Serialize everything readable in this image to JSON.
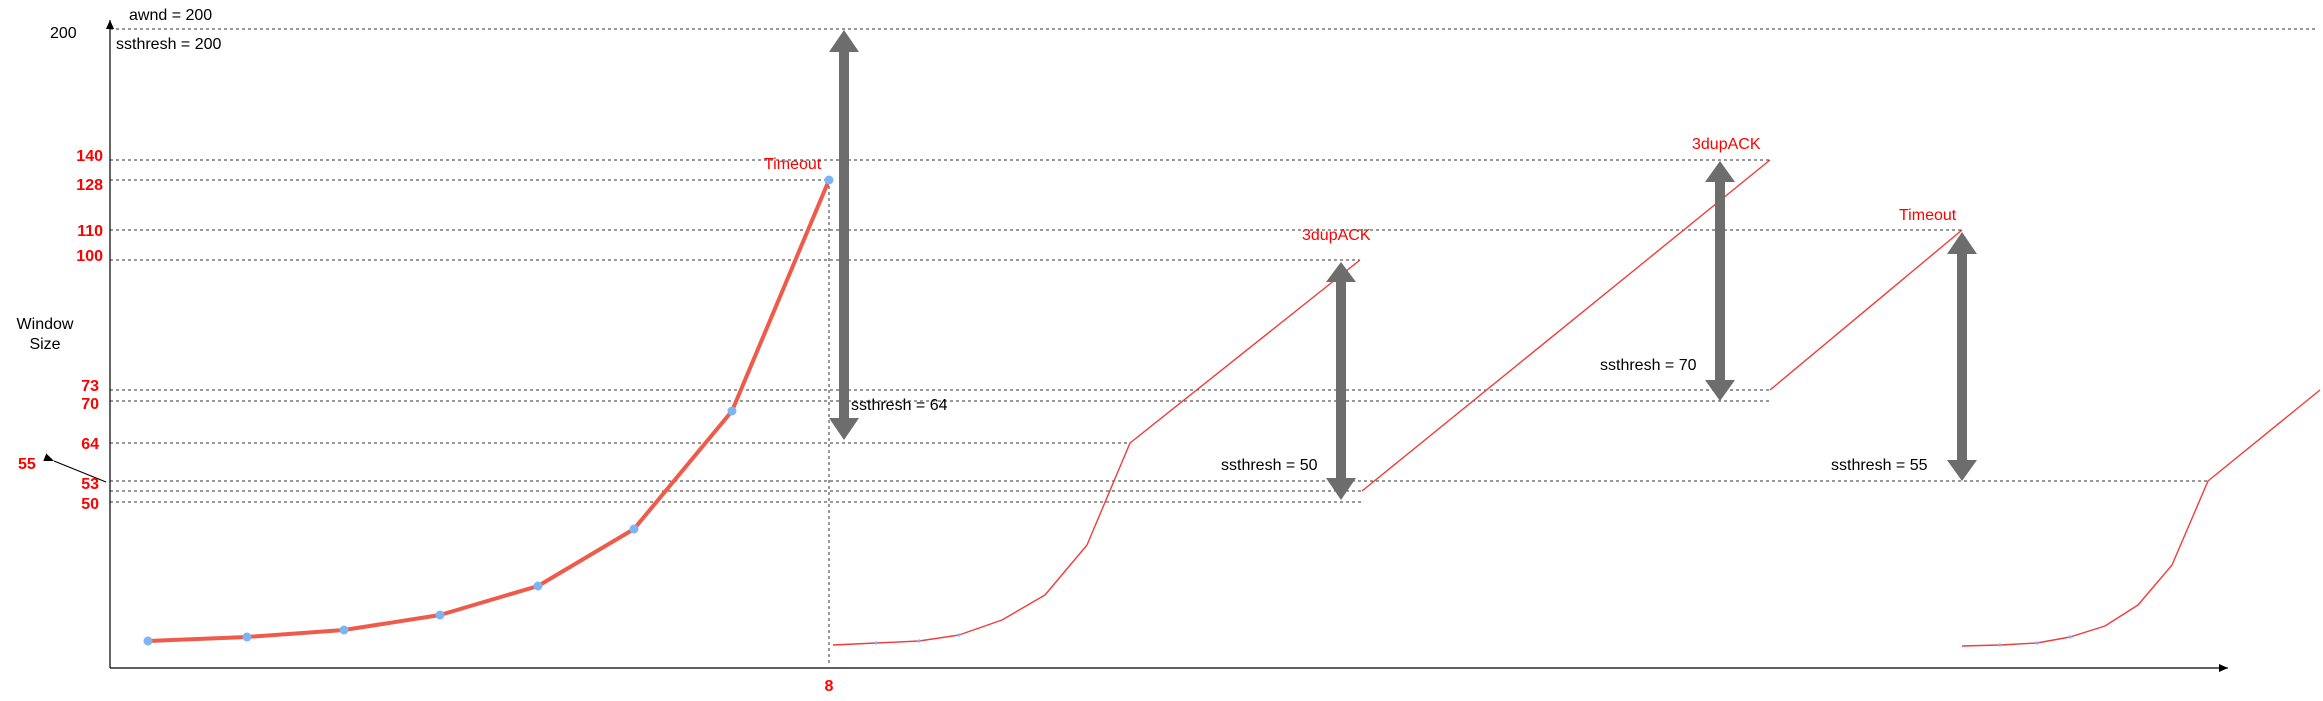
{
  "labels": {
    "awnd": "awnd = 200",
    "ssthresh_initial": "ssthresh = 200",
    "y_axis_top": "200",
    "y_axis_title_line1": "Window",
    "y_axis_title_line2": "Size",
    "x_tick_8": "8",
    "side_55": "55"
  },
  "y_ticks": [
    "140",
    "128",
    "110",
    "100",
    "73",
    "70",
    "64",
    "53",
    "50"
  ],
  "events": {
    "timeout_1": "Timeout",
    "dupack_1": "3dupACK",
    "dupack_2": "3dupACK",
    "timeout_2": "Timeout"
  },
  "ssthresh_labels": {
    "s64": "ssthresh = 64",
    "s50": "ssthresh = 50",
    "s70": "ssthresh = 70",
    "s55": "ssthresh = 55"
  },
  "colors": {
    "axis": "#000000",
    "curve": "#f05a4a",
    "marker": "#7cb6f2",
    "arrow": "#6d6d6d",
    "event_text": "#ff0000"
  }
}
